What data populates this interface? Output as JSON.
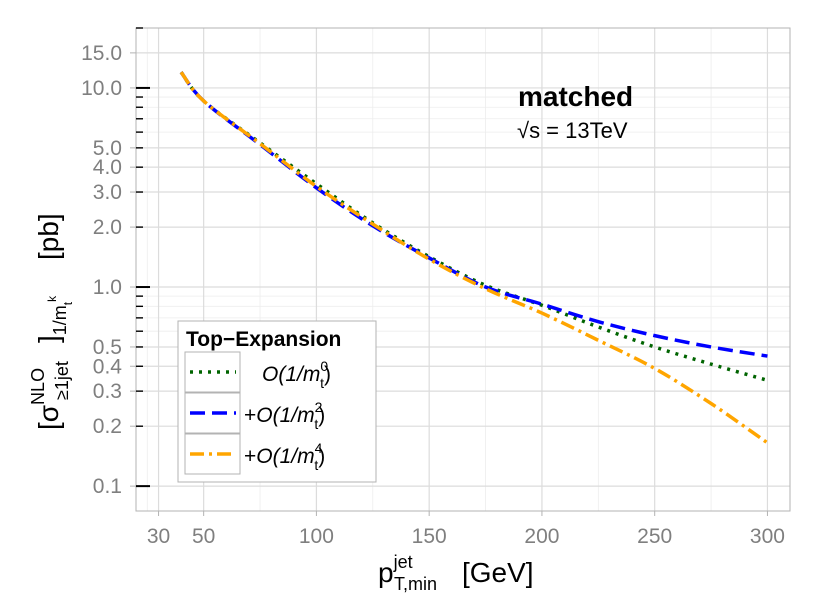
{
  "chart_data": {
    "type": "line",
    "title": "",
    "annotations": {
      "title_text": "matched",
      "energy_prefix": "√s = ",
      "energy_value": "13TeV"
    },
    "xlabel": {
      "base": "p",
      "sup": "jet",
      "sub": "T,min",
      "unit": "[GeV]"
    },
    "ylabel": {
      "open": "[σ",
      "sup": "NLO",
      "sub": "≥1jet",
      "close": "]",
      "sub2_base": "1/m",
      "sub2_sub": "t",
      "sub2_sup": "k",
      "unit": "[pb]"
    },
    "x_scale": "linear",
    "y_scale": "log",
    "xlim": [
      20,
      310
    ],
    "ylim": [
      0.075,
      20
    ],
    "grid": true,
    "x_ticks": [
      30,
      50,
      100,
      150,
      200,
      250,
      300
    ],
    "x_tick_labels": [
      "30",
      "50",
      "100",
      "150",
      "200",
      "250",
      "300"
    ],
    "y_ticks": [
      0.1,
      0.2,
      0.3,
      0.4,
      0.5,
      1.0,
      2.0,
      3.0,
      4.0,
      5.0,
      10.0,
      15.0
    ],
    "y_tick_labels": [
      "0.1",
      "0.2",
      "0.3",
      "0.4",
      "0.5",
      "1.0",
      "2.0",
      "3.0",
      "4.0",
      "5.0",
      "10.0",
      "15.0"
    ],
    "legend": {
      "title": "Top−Expansion",
      "position": "bottom-left",
      "entries": [
        {
          "prefix": "",
          "label": "O(1/m",
          "sub": "t",
          "sup": "0",
          "close": ")"
        },
        {
          "prefix": "+",
          "label": "O(1/m",
          "sub": "t",
          "sup": "2",
          "close": ")"
        },
        {
          "prefix": "+",
          "label": "O(1/m",
          "sub": "t",
          "sup": "4",
          "close": ")"
        }
      ]
    },
    "x": [
      40,
      50,
      75,
      100,
      125,
      150,
      175,
      200,
      225,
      250,
      275,
      300
    ],
    "series": [
      {
        "name": "O(1/m_t^0)",
        "color": "#006400",
        "dash": "3,6",
        "values": [
          12.0,
          8.6,
          5.3,
          3.3,
          2.1,
          1.42,
          1.02,
          0.81,
          0.63,
          0.5,
          0.41,
          0.34
        ]
      },
      {
        "name": "+O(1/m_t^2)",
        "color": "#0000ff",
        "dash": "15,7",
        "values": [
          12.0,
          8.6,
          5.2,
          3.15,
          2.03,
          1.4,
          1.0,
          0.82,
          0.67,
          0.57,
          0.5,
          0.45
        ]
      },
      {
        "name": "+O(1/m_t^4)",
        "color": "#ffa500",
        "dash": "14,5,3,5",
        "values": [
          12.0,
          8.6,
          5.25,
          3.2,
          2.07,
          1.38,
          0.98,
          0.74,
          0.54,
          0.39,
          0.26,
          0.165
        ]
      }
    ]
  }
}
